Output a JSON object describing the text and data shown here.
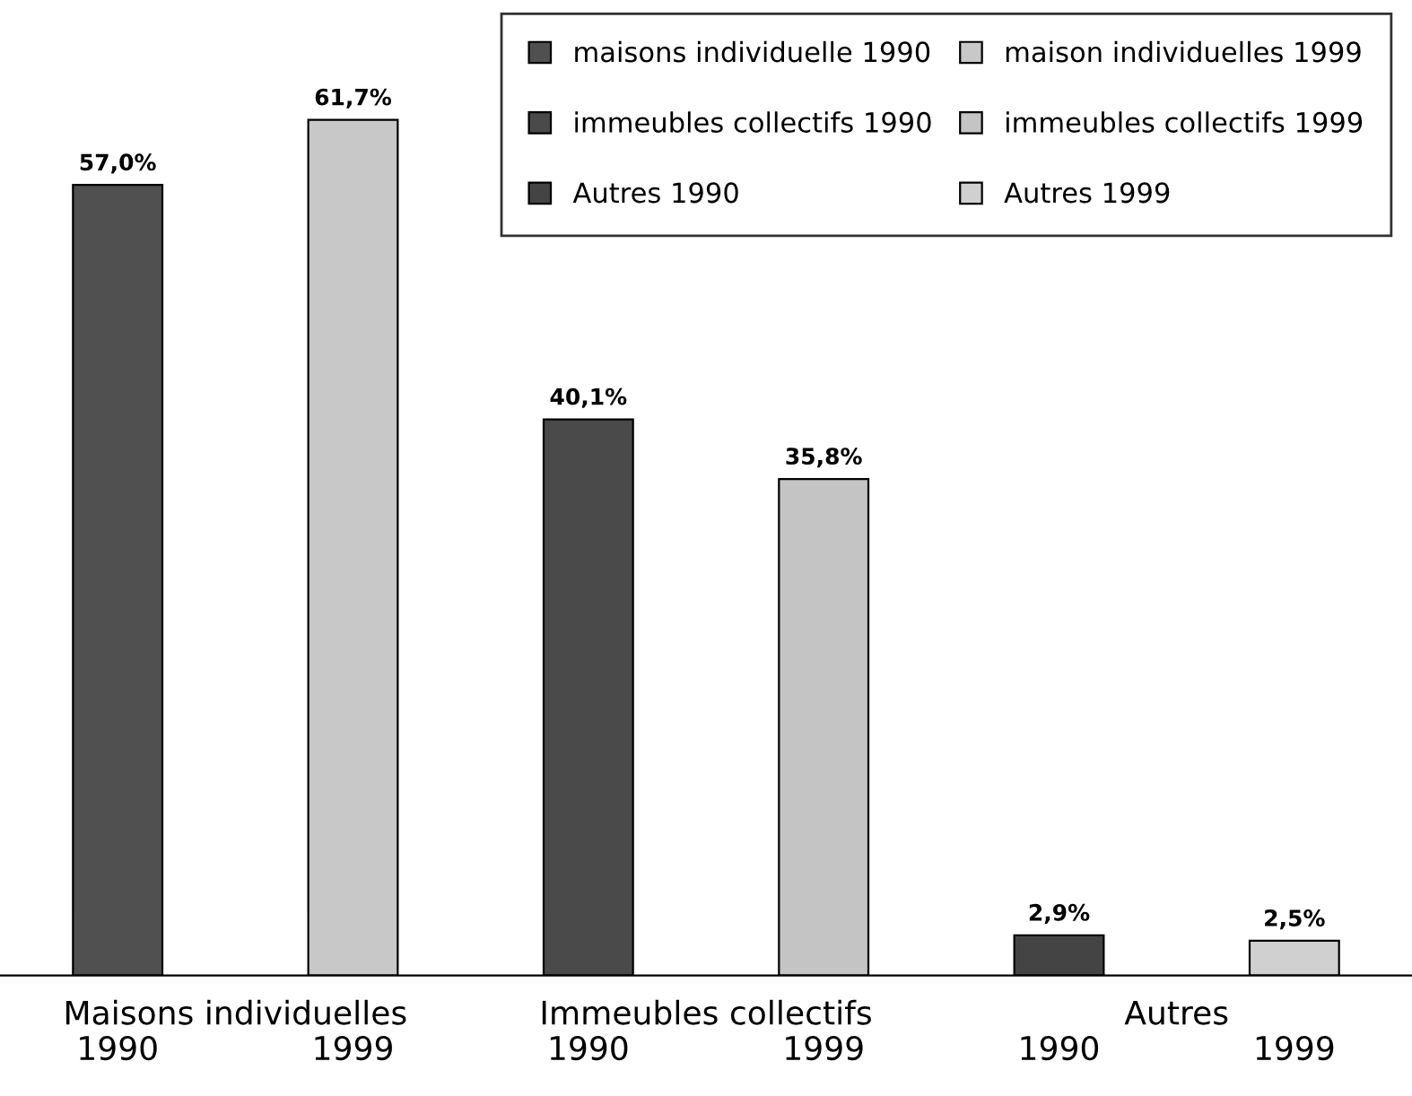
{
  "chart_data": {
    "type": "bar",
    "categories": [
      "1990",
      "1999",
      "1990",
      "1999",
      "1990",
      "1999"
    ],
    "series": [
      {
        "name": "maisons individuelle 1990",
        "color": "#505050",
        "values": [
          57.0,
          null,
          null,
          null,
          null,
          null
        ],
        "value_labels": [
          "57,0%",
          null,
          null,
          null,
          null,
          null
        ]
      },
      {
        "name": "maison individuelles 1999",
        "color": "#c8c8c8",
        "values": [
          null,
          61.7,
          null,
          null,
          null,
          null
        ],
        "value_labels": [
          null,
          "61,7%",
          null,
          null,
          null,
          null
        ]
      },
      {
        "name": "immeubles collectifs 1990",
        "color": "#4a4a4a",
        "values": [
          null,
          null,
          40.1,
          null,
          null,
          null
        ],
        "value_labels": [
          null,
          null,
          "40,1%",
          null,
          null,
          null
        ]
      },
      {
        "name": "immeubles collectifs 1999",
        "color": "#c4c4c4",
        "values": [
          null,
          null,
          null,
          35.8,
          null,
          null
        ],
        "value_labels": [
          null,
          null,
          null,
          "35,8%",
          null,
          null
        ]
      },
      {
        "name": "Autres 1990",
        "color": "#444444",
        "values": [
          null,
          null,
          null,
          null,
          2.9,
          null
        ],
        "value_labels": [
          null,
          null,
          null,
          null,
          "2,9%",
          null
        ]
      },
      {
        "name": "Autres 1999",
        "color": "#d0d0d0",
        "values": [
          null,
          null,
          null,
          null,
          null,
          2.5
        ],
        "value_labels": [
          null,
          null,
          null,
          null,
          null,
          "2,5%"
        ]
      }
    ],
    "annotations": [
      "Maisons individuelles",
      "Immeubles collectifs",
      "Autres"
    ],
    "legend": "top right",
    "grid": false
  }
}
